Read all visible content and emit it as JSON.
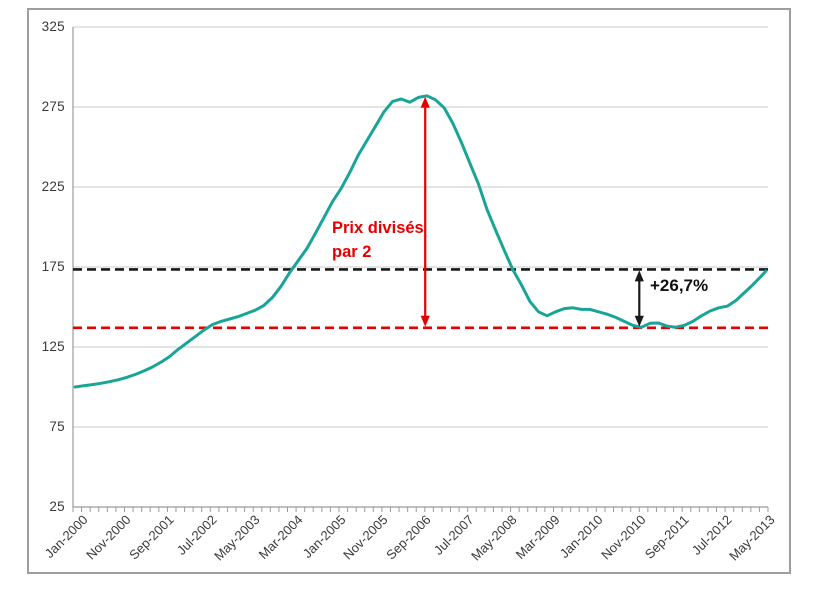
{
  "chart_data": {
    "type": "line",
    "title": "",
    "x_axis": {
      "unit": "monthly, Jan-2000 to Jun-2013",
      "n_months": 162,
      "tick_interval_months": 10,
      "minor_tick_interval_months": 2,
      "tick_labels": [
        "Jan-2000",
        "Nov-2000",
        "Sep-2001",
        "Jul-2002",
        "May-2003",
        "Mar-2004",
        "Jan-2005",
        "Nov-2005",
        "Sep-2006",
        "Jul-2007",
        "May-2008",
        "Mar-2009",
        "Jan-2010",
        "Nov-2010",
        "Sep-2011",
        "Jul-2012",
        "May-2013"
      ]
    },
    "y_axis": {
      "range": [
        25,
        325
      ],
      "ticks": [
        325,
        275,
        225,
        175,
        125,
        75,
        25
      ],
      "tick_labels": [
        "325",
        "275",
        "225",
        "175",
        "125",
        "75",
        "25"
      ],
      "gridlines": true
    },
    "series": [
      {
        "name": "house-price-index",
        "color": "#18a597",
        "points_month_value": [
          [
            0,
            100
          ],
          [
            2,
            100.8
          ],
          [
            4,
            101.5
          ],
          [
            6,
            102.3
          ],
          [
            8,
            103.3
          ],
          [
            10,
            104.5
          ],
          [
            12,
            106
          ],
          [
            14,
            107.8
          ],
          [
            16,
            110
          ],
          [
            18,
            112.5
          ],
          [
            20,
            115.5
          ],
          [
            22,
            119
          ],
          [
            24,
            123.5
          ],
          [
            26,
            127.5
          ],
          [
            28,
            131.5
          ],
          [
            30,
            135.5
          ],
          [
            32,
            139
          ],
          [
            34,
            141
          ],
          [
            36,
            142.5
          ],
          [
            38,
            144
          ],
          [
            40,
            146
          ],
          [
            42,
            148
          ],
          [
            44,
            151
          ],
          [
            46,
            156
          ],
          [
            48,
            163
          ],
          [
            50,
            171.5
          ],
          [
            52,
            179
          ],
          [
            54,
            186.5
          ],
          [
            56,
            196
          ],
          [
            58,
            206
          ],
          [
            60,
            216
          ],
          [
            62,
            224
          ],
          [
            64,
            234
          ],
          [
            66,
            245
          ],
          [
            68,
            254
          ],
          [
            70,
            263
          ],
          [
            72,
            272
          ],
          [
            74,
            278.5
          ],
          [
            76,
            280
          ],
          [
            78,
            278
          ],
          [
            80,
            281
          ],
          [
            82,
            282
          ],
          [
            84,
            279.5
          ],
          [
            86,
            274.5
          ],
          [
            88,
            265
          ],
          [
            90,
            253
          ],
          [
            92,
            240
          ],
          [
            94,
            227
          ],
          [
            96,
            211
          ],
          [
            98,
            198
          ],
          [
            100,
            185.5
          ],
          [
            102,
            173.5
          ],
          [
            104,
            164
          ],
          [
            106,
            153.5
          ],
          [
            108,
            147
          ],
          [
            110,
            144.5
          ],
          [
            112,
            147
          ],
          [
            114,
            149
          ],
          [
            116,
            149.5
          ],
          [
            118,
            148.5
          ],
          [
            120,
            148.5
          ],
          [
            122,
            147
          ],
          [
            124,
            145.5
          ],
          [
            126,
            143.5
          ],
          [
            128,
            141
          ],
          [
            130,
            138.5
          ],
          [
            132,
            137.3
          ],
          [
            134,
            139.8
          ],
          [
            136,
            140
          ],
          [
            138,
            138
          ],
          [
            140,
            137.4
          ],
          [
            142,
            138.5
          ],
          [
            144,
            141
          ],
          [
            146,
            144.5
          ],
          [
            148,
            147.5
          ],
          [
            150,
            149.5
          ],
          [
            152,
            150.5
          ],
          [
            154,
            154
          ],
          [
            156,
            159
          ],
          [
            158,
            164
          ],
          [
            160,
            169.5
          ],
          [
            161,
            172.5
          ]
        ]
      }
    ],
    "reference_lines": [
      {
        "name": "trough-level",
        "value": 137,
        "color": "#e60000",
        "style": "dashed"
      },
      {
        "name": "current-level",
        "value": 173.5,
        "color": "#1a1a1a",
        "style": "dashed"
      }
    ],
    "arrows": [
      {
        "name": "halving-arrow",
        "x_month": 81.6,
        "from_value": 282,
        "to_value": 137,
        "color": "#e60000"
      },
      {
        "name": "rebound-arrow",
        "x_month": 131.5,
        "from_value": 173.5,
        "to_value": 137,
        "color": "#1a1a1a"
      }
    ],
    "annotations": {
      "halving_label_line1": "Prix divisés",
      "halving_label_line2": "par 2",
      "rebound_label": "+26,7%"
    }
  },
  "colors": {
    "series": "#18a597",
    "red": "#e60000",
    "black": "#1a1a1a",
    "gridline": "#c9c9c9",
    "axis": "#9b9b9b",
    "frame_border": "#9e9e9e",
    "background": "#ffffff"
  }
}
